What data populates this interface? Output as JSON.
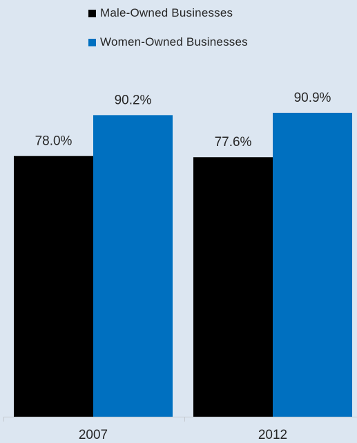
{
  "chart_data": {
    "type": "bar",
    "categories": [
      "2007",
      "2012"
    ],
    "series": [
      {
        "name": "Male-Owned Businesses",
        "values": [
          78.0,
          77.6
        ],
        "labels": [
          "78.0%",
          "77.6%"
        ],
        "color": "#000000"
      },
      {
        "name": "Women-Owned Businesses",
        "values": [
          90.2,
          90.9
        ],
        "labels": [
          "90.2%",
          "90.9%"
        ],
        "color": "#0070c0"
      }
    ],
    "title": "",
    "xlabel": "",
    "ylabel": "",
    "ylim": [
      0,
      100
    ],
    "grid": false,
    "legend_position": "top"
  }
}
